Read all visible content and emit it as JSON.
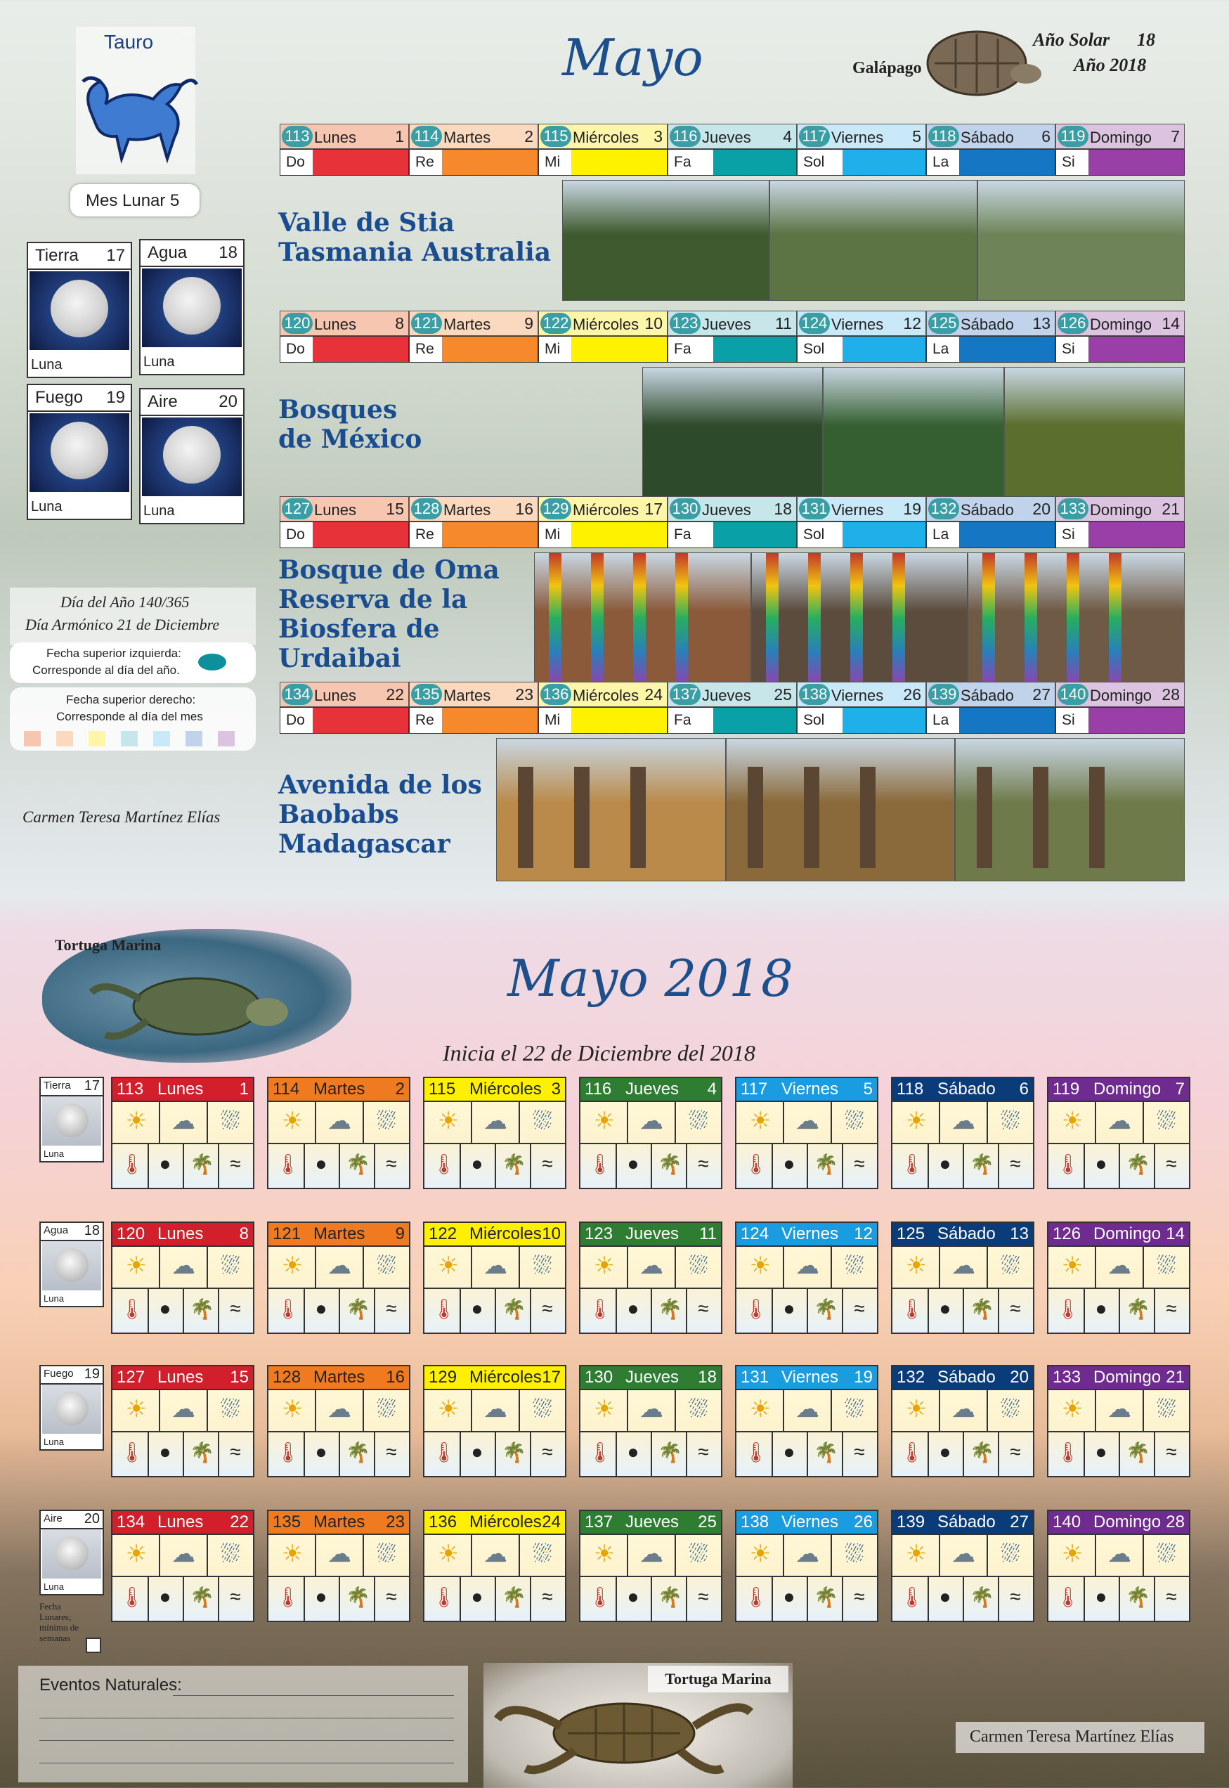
{
  "top": {
    "sign": "Tauro",
    "title": "Mayo",
    "solar_year_label": "Año Solar",
    "solar_year_num": "18",
    "year_label": "Año 2018",
    "animal": "Galápago",
    "lunar_month": "Mes Lunar 5",
    "elements": [
      {
        "name": "Tierra",
        "num": "17",
        "moon": "Luna"
      },
      {
        "name": "Agua",
        "num": "18",
        "moon": "Luna"
      },
      {
        "name": "Fuego",
        "num": "19",
        "moon": "Luna"
      },
      {
        "name": "Aire",
        "num": "20",
        "moon": "Luna"
      }
    ],
    "day_of_year": "Día del Año 140/365",
    "harmonic_day": "Día Armónico 21 de Diciembre",
    "note_left_1": "Fecha superior izquierda:",
    "note_left_2": "Corresponde al día del año.",
    "note_right_1": "Fecha superior derecho:",
    "note_right_2": "Corresponde al día del mes",
    "author": "Carmen Teresa Martínez Elías",
    "week_headings": [
      [
        "Valle de Stia",
        "Tasmania Australia"
      ],
      [
        "Bosques",
        "de México"
      ],
      [
        "Bosque de Oma",
        "Reserva de la",
        "Biosfera de",
        "Urdaibai"
      ],
      [
        "Avenida de los",
        "Baobabs",
        "Madagascar"
      ]
    ],
    "notes": [
      "Do",
      "Re",
      "Mi",
      "Fa",
      "Sol",
      "La",
      "Si"
    ],
    "weeks": [
      [
        [
          "113",
          "Lunes",
          "1"
        ],
        [
          "114",
          "Martes",
          "2"
        ],
        [
          "115",
          "Miércoles",
          "3"
        ],
        [
          "116",
          "Jueves",
          "4"
        ],
        [
          "117",
          "Viernes",
          "5"
        ],
        [
          "118",
          "Sábado",
          "6"
        ],
        [
          "119",
          "Domingo",
          "7"
        ]
      ],
      [
        [
          "120",
          "Lunes",
          "8"
        ],
        [
          "121",
          "Martes",
          "9"
        ],
        [
          "122",
          "Miércoles",
          "10"
        ],
        [
          "123",
          "Jueves",
          "11"
        ],
        [
          "124",
          "Viernes",
          "12"
        ],
        [
          "125",
          "Sábado",
          "13"
        ],
        [
          "126",
          "Domingo",
          "14"
        ]
      ],
      [
        [
          "127",
          "Lunes",
          "15"
        ],
        [
          "128",
          "Martes",
          "16"
        ],
        [
          "129",
          "Miércoles",
          "17"
        ],
        [
          "130",
          "Jueves",
          "18"
        ],
        [
          "131",
          "Viernes",
          "19"
        ],
        [
          "132",
          "Sábado",
          "20"
        ],
        [
          "133",
          "Domingo",
          "21"
        ]
      ],
      [
        [
          "134",
          "Lunes",
          "22"
        ],
        [
          "135",
          "Martes",
          "23"
        ],
        [
          "136",
          "Miércoles",
          "24"
        ],
        [
          "137",
          "Jueves",
          "25"
        ],
        [
          "138",
          "Viernes",
          "26"
        ],
        [
          "139",
          "Sábado",
          "27"
        ],
        [
          "140",
          "Domingo",
          "28"
        ]
      ]
    ]
  },
  "bottom": {
    "animal_top": "Tortuga Marina",
    "title": "Mayo 2018",
    "subtitle": "Inicia el 22 de Diciembre del 2018",
    "elements": [
      {
        "name": "Tierra",
        "num": "17",
        "moon": "Luna"
      },
      {
        "name": "Agua",
        "num": "18",
        "moon": "Luna"
      },
      {
        "name": "Fuego",
        "num": "19",
        "moon": "Luna"
      },
      {
        "name": "Aire",
        "num": "20",
        "moon": "Luna"
      }
    ],
    "lunar_note": "Fecha Lunares; mínimo de semanas",
    "events_label": "Eventos Naturales:",
    "animal_bottom": "Tortuga Marina",
    "author": "Carmen Teresa Martínez Elías"
  },
  "colors": {
    "bars": [
      "#e8323a",
      "#f5892b",
      "#fff200",
      "#0aa0a8",
      "#1fb0ea",
      "#1577c4",
      "#9b3fa8"
    ],
    "headers": [
      "#d21f2b",
      "#f07a1f",
      "#fff000",
      "#2e7d32",
      "#1a9de0",
      "#0b3c7a",
      "#6f2b8f"
    ],
    "tints": [
      "#f7c6b0",
      "#fbd9be",
      "#fdf5a8",
      "#c7e6ea",
      "#c9e9f8",
      "#c0d3ea",
      "#dcc4e1"
    ]
  }
}
